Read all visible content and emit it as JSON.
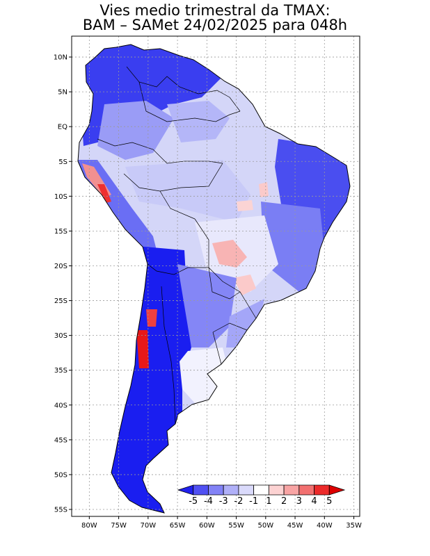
{
  "title": {
    "line1": "Vies medio trimestral da TMAX:",
    "line2": "BAM – SAMet 24/02/2025  para 048h"
  },
  "map": {
    "region": "South America",
    "projection": "lat-lon",
    "lon_range": [
      -83,
      -34
    ],
    "lat_range": [
      -56,
      13
    ],
    "grid": true,
    "lon_ticks": [
      {
        "value": -80,
        "label": "80W"
      },
      {
        "value": -75,
        "label": "75W"
      },
      {
        "value": -70,
        "label": "70W"
      },
      {
        "value": -65,
        "label": "65W"
      },
      {
        "value": -60,
        "label": "60W"
      },
      {
        "value": -55,
        "label": "55W"
      },
      {
        "value": -50,
        "label": "50W"
      },
      {
        "value": -45,
        "label": "45W"
      },
      {
        "value": -40,
        "label": "40W"
      },
      {
        "value": -35,
        "label": "35W"
      }
    ],
    "lat_ticks": [
      {
        "value": 10,
        "label": "10N"
      },
      {
        "value": 5,
        "label": "5N"
      },
      {
        "value": 0,
        "label": "EQ"
      },
      {
        "value": -5,
        "label": "5S"
      },
      {
        "value": -10,
        "label": "10S"
      },
      {
        "value": -15,
        "label": "15S"
      },
      {
        "value": -20,
        "label": "20S"
      },
      {
        "value": -25,
        "label": "25S"
      },
      {
        "value": -30,
        "label": "30S"
      },
      {
        "value": -35,
        "label": "35S"
      },
      {
        "value": -40,
        "label": "40S"
      },
      {
        "value": -45,
        "label": "45S"
      },
      {
        "value": -50,
        "label": "50S"
      },
      {
        "value": -55,
        "label": "55S"
      }
    ]
  },
  "colorbar": {
    "placement": "bottom-right inside map",
    "labels": [
      "-5",
      "-4",
      "-3",
      "-2",
      "-1",
      "1",
      "2",
      "3",
      "4",
      "5"
    ],
    "colors": [
      "#2020ee",
      "#5050f2",
      "#8282f6",
      "#b0b0f8",
      "#dadafb",
      "#ffffff",
      "#fcd2d2",
      "#f8a4a4",
      "#f27070",
      "#ec2a2a",
      "#dd0000"
    ]
  }
}
